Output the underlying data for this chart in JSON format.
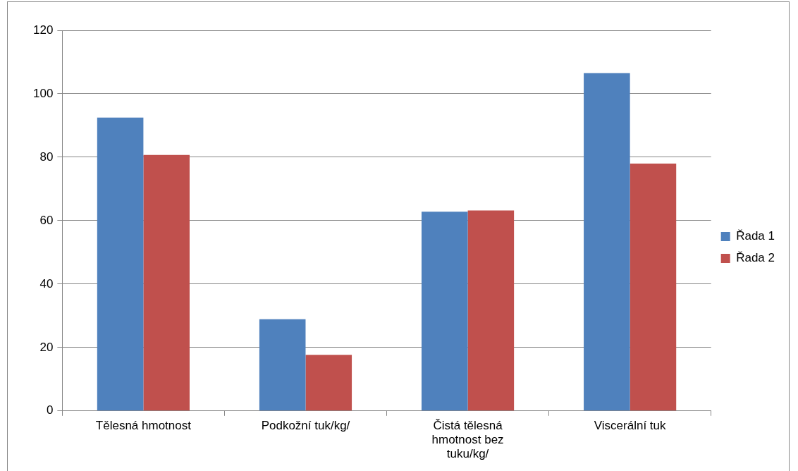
{
  "chart_data": {
    "type": "bar",
    "categories": [
      "Tělesná hmotnost",
      "Podkožní tuk/kg/",
      "Čistá tělesná hmotnost bez tuku/kg/",
      "Viscerální tuk"
    ],
    "series": [
      {
        "name": "Řada 1",
        "color": "#4f81bd",
        "values": [
          92.5,
          28.9,
          62.8,
          106.5
        ]
      },
      {
        "name": "Řada 2",
        "color": "#c0504d",
        "values": [
          80.7,
          17.7,
          63.2,
          78.0
        ]
      }
    ],
    "ylim": [
      0,
      120
    ],
    "yticks": [
      0,
      20,
      40,
      60,
      80,
      100,
      120
    ],
    "grid": "y",
    "legend": "right"
  }
}
